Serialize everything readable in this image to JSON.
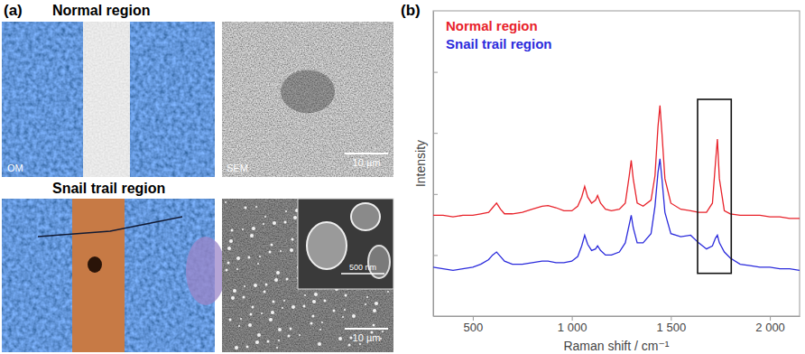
{
  "panel_a": {
    "label": "(a)",
    "normal": {
      "title": "Normal region",
      "om_label": "OM",
      "sem_label": "SEM",
      "sem_scale_bar": "10 µm"
    },
    "snail": {
      "title": "Snail trail region",
      "sem_scale_bar": "10 µm",
      "inset_scale_bar": "500 nm"
    }
  },
  "panel_b": {
    "label": "(b)"
  },
  "chart_data": {
    "type": "line",
    "x_label": "Raman shift / cm⁻¹",
    "y_label": "Intensity",
    "x": [
      300,
      350,
      400,
      450,
      500,
      540,
      580,
      600,
      620,
      640,
      660,
      700,
      750,
      800,
      850,
      880,
      920,
      960,
      1000,
      1030,
      1050,
      1065,
      1080,
      1100,
      1120,
      1130,
      1145,
      1170,
      1200,
      1240,
      1270,
      1290,
      1300,
      1310,
      1330,
      1360,
      1400,
      1420,
      1435,
      1445,
      1455,
      1470,
      1500,
      1550,
      1600,
      1640,
      1680,
      1710,
      1725,
      1735,
      1745,
      1770,
      1800,
      1850,
      1900,
      1950,
      2000,
      2050,
      2100,
      2150
    ],
    "series": [
      {
        "name": "Normal region",
        "color": "#e8222a",
        "values": [
          3.3,
          3.3,
          3.25,
          3.3,
          3.3,
          3.35,
          3.4,
          3.55,
          3.7,
          3.5,
          3.35,
          3.35,
          3.4,
          3.5,
          3.6,
          3.62,
          3.55,
          3.45,
          3.45,
          3.6,
          3.9,
          4.25,
          3.9,
          3.7,
          3.8,
          3.95,
          3.7,
          3.5,
          3.45,
          3.5,
          3.7,
          4.6,
          5.1,
          4.5,
          3.7,
          3.6,
          3.8,
          4.6,
          6.2,
          6.9,
          6.0,
          4.5,
          3.7,
          3.5,
          3.45,
          3.4,
          3.4,
          3.7,
          5.0,
          5.8,
          4.5,
          3.45,
          3.35,
          3.3,
          3.3,
          3.3,
          3.25,
          3.25,
          3.2,
          3.2
        ]
      },
      {
        "name": "Snail trail region",
        "color": "#2b2bdc",
        "values": [
          1.6,
          1.55,
          1.5,
          1.55,
          1.6,
          1.7,
          1.85,
          2.0,
          2.1,
          1.95,
          1.8,
          1.7,
          1.7,
          1.75,
          1.8,
          1.8,
          1.75,
          1.75,
          1.8,
          1.95,
          2.3,
          2.65,
          2.35,
          2.15,
          2.2,
          2.3,
          2.15,
          2.0,
          2.0,
          2.1,
          2.4,
          3.0,
          3.3,
          2.9,
          2.4,
          2.4,
          2.7,
          3.6,
          4.7,
          5.15,
          4.5,
          3.4,
          2.7,
          2.6,
          2.65,
          2.4,
          2.2,
          2.3,
          2.55,
          2.65,
          2.4,
          2.1,
          1.9,
          1.7,
          1.65,
          1.6,
          1.6,
          1.55,
          1.55,
          1.5
        ]
      }
    ],
    "xlim": [
      300,
      2150
    ],
    "xticks": [
      500,
      {
        "value": 1000,
        "label": "1 000"
      },
      {
        "value": 1500,
        "label": "1 500"
      },
      {
        "value": 2000,
        "label": "2 000"
      }
    ],
    "ylim": [
      0,
      10
    ],
    "yticks": [
      2,
      4,
      6,
      8
    ],
    "tick_labels": "x",
    "grid": false,
    "legend": "upper left",
    "highlight": {
      "xlim": [
        1635,
        1805
      ],
      "ylim": [
        1.4,
        7.1
      ]
    }
  }
}
